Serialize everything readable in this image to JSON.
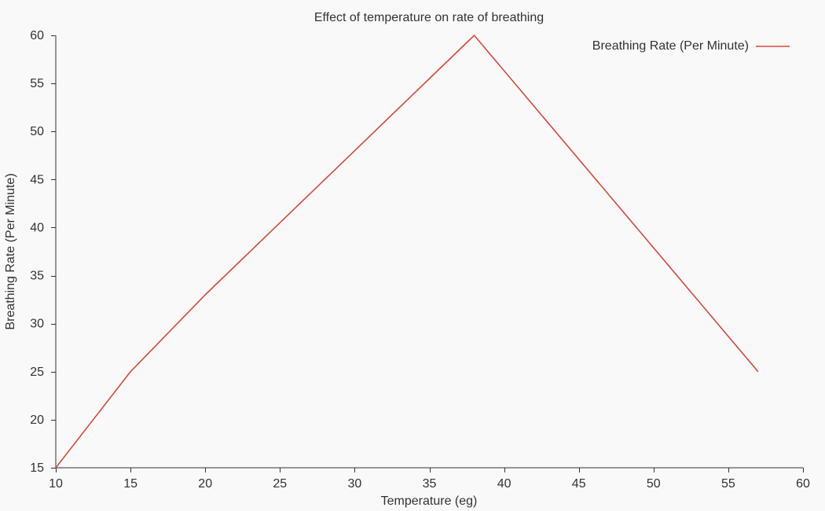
{
  "chart_data": {
    "type": "line",
    "title": "Effect of temperature on rate of breathing",
    "xlabel": "Temperature (eg)",
    "ylabel": "Breathing Rate (Per Minute)",
    "xlim": [
      10,
      60
    ],
    "ylim": [
      15,
      60
    ],
    "xticks": [
      10,
      15,
      20,
      25,
      30,
      35,
      40,
      45,
      50,
      55,
      60
    ],
    "yticks": [
      15,
      20,
      25,
      30,
      35,
      40,
      45,
      50,
      55,
      60
    ],
    "grid": false,
    "legend_position": "top-right",
    "series": [
      {
        "name": "Breathing Rate (Per Minute)",
        "color": "#d9493a",
        "x": [
          10,
          15,
          20,
          25,
          30,
          35,
          38,
          57
        ],
        "y": [
          15,
          25,
          33,
          40.5,
          48,
          55.5,
          60,
          25
        ]
      }
    ]
  }
}
